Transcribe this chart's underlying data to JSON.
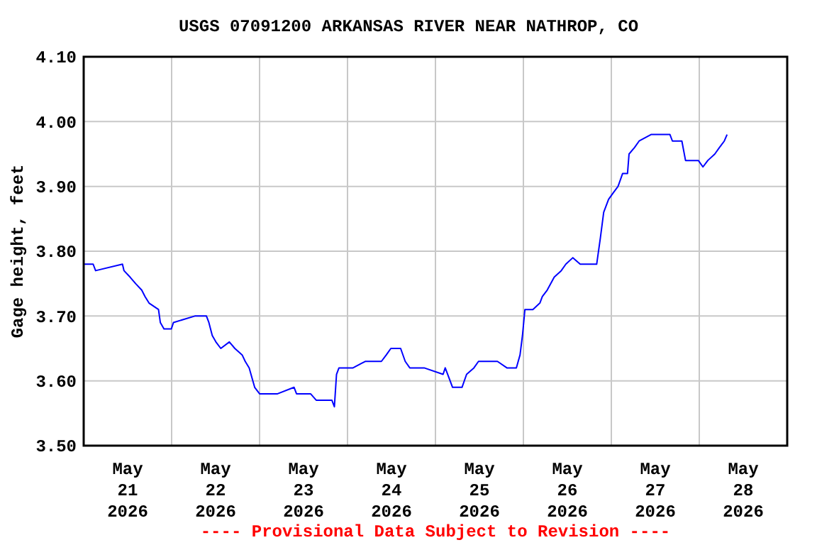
{
  "chart_data": {
    "type": "line",
    "title": "USGS 07091200 ARKANSAS RIVER NEAR NATHROP, CO",
    "ylabel": "Gage height, feet",
    "annotations": [
      "---- Provisional Data Subject to Revision ----"
    ],
    "xlim": [
      "2026-05-21T00:00",
      "2026-05-29T00:00"
    ],
    "xticks": [
      {
        "value": "2026-05-21T00:00",
        "label": null
      },
      {
        "value": "2026-05-21T12:00",
        "label": "May\n21\n2026"
      },
      {
        "value": "2026-05-22T00:00",
        "label": null
      },
      {
        "value": "2026-05-22T12:00",
        "label": "May\n22\n2026"
      },
      {
        "value": "2026-05-23T00:00",
        "label": null
      },
      {
        "value": "2026-05-23T12:00",
        "label": "May\n23\n2026"
      },
      {
        "value": "2026-05-24T00:00",
        "label": null
      },
      {
        "value": "2026-05-24T12:00",
        "label": "May\n24\n2026"
      },
      {
        "value": "2026-05-25T00:00",
        "label": null
      },
      {
        "value": "2026-05-25T12:00",
        "label": "May\n25\n2026"
      },
      {
        "value": "2026-05-26T00:00",
        "label": null
      },
      {
        "value": "2026-05-26T12:00",
        "label": "May\n26\n2026"
      },
      {
        "value": "2026-05-27T00:00",
        "label": null
      },
      {
        "value": "2026-05-27T12:00",
        "label": "May\n27\n2026"
      },
      {
        "value": "2026-05-28T00:00",
        "label": null
      },
      {
        "value": "2026-05-28T12:00",
        "label": "May\n28\n2026"
      },
      {
        "value": "2026-05-29T00:00",
        "label": null
      }
    ],
    "ylim": [
      3.5,
      4.1
    ],
    "yticks": [
      {
        "value": 3.5,
        "label": "3.50"
      },
      {
        "value": 3.6,
        "label": "3.60"
      },
      {
        "value": 3.7,
        "label": "3.70"
      },
      {
        "value": 3.8,
        "label": "3.80"
      },
      {
        "value": 3.9,
        "label": "3.90"
      },
      {
        "value": 4.0,
        "label": "4.00"
      },
      {
        "value": 4.1,
        "label": "4.10"
      }
    ],
    "grid": true,
    "marker": "none",
    "line_style": "solid",
    "x": [
      "2026-05-21T00:00",
      "2026-05-21T02:35",
      "2026-05-21T03:15",
      "2026-05-21T10:35",
      "2026-05-21T11:00",
      "2026-05-21T12:40",
      "2026-05-21T14:10",
      "2026-05-21T15:50",
      "2026-05-21T16:45",
      "2026-05-21T17:50",
      "2026-05-21T20:25",
      "2026-05-21T20:55",
      "2026-05-21T21:55",
      "2026-05-21T23:55",
      "2026-05-22T00:30",
      "2026-05-22T06:20",
      "2026-05-22T09:30",
      "2026-05-22T10:10",
      "2026-05-22T11:05",
      "2026-05-22T12:05",
      "2026-05-22T13:25",
      "2026-05-22T15:45",
      "2026-05-22T17:15",
      "2026-05-22T19:15",
      "2026-05-22T20:05",
      "2026-05-22T21:10",
      "2026-05-22T22:10",
      "2026-05-22T22:40",
      "2026-05-23T00:00",
      "2026-05-23T04:55",
      "2026-05-23T09:25",
      "2026-05-23T10:05",
      "2026-05-23T13:55",
      "2026-05-23T15:30",
      "2026-05-23T19:45",
      "2026-05-23T20:25",
      "2026-05-23T21:00",
      "2026-05-23T21:40",
      "2026-05-24T01:30",
      "2026-05-24T04:50",
      "2026-05-24T09:15",
      "2026-05-24T10:35",
      "2026-05-24T11:50",
      "2026-05-24T14:30",
      "2026-05-24T15:45",
      "2026-05-24T17:00",
      "2026-05-24T20:55",
      "2026-05-25T02:05",
      "2026-05-25T02:40",
      "2026-05-25T04:00",
      "2026-05-25T04:40",
      "2026-05-25T07:15",
      "2026-05-25T08:30",
      "2026-05-25T10:30",
      "2026-05-25T11:45",
      "2026-05-25T16:55",
      "2026-05-25T19:30",
      "2026-05-25T22:05",
      "2026-05-25T23:05",
      "2026-05-25T23:45",
      "2026-05-26T00:25",
      "2026-05-26T02:35",
      "2026-05-26T04:30",
      "2026-05-26T05:10",
      "2026-05-26T06:30",
      "2026-05-26T08:25",
      "2026-05-26T10:20",
      "2026-05-26T11:35",
      "2026-05-26T13:30",
      "2026-05-26T15:30",
      "2026-05-26T20:00",
      "2026-05-26T21:00",
      "2026-05-26T21:55",
      "2026-05-26T23:15",
      "2026-05-27T00:30",
      "2026-05-27T01:50",
      "2026-05-27T03:05",
      "2026-05-27T04:25",
      "2026-05-27T04:50",
      "2026-05-27T06:20",
      "2026-05-27T07:35",
      "2026-05-27T10:50",
      "2026-05-27T16:00",
      "2026-05-27T16:40",
      "2026-05-27T19:15",
      "2026-05-27T20:15",
      "2026-05-27T23:45",
      "2026-05-28T01:00",
      "2026-05-28T02:20",
      "2026-05-28T04:15",
      "2026-05-28T05:30",
      "2026-05-28T06:50",
      "2026-05-28T07:35"
    ],
    "series": [
      {
        "color": "#0000ff",
        "values": [
          3.78,
          3.78,
          3.77,
          3.78,
          3.77,
          3.76,
          3.75,
          3.74,
          3.73,
          3.72,
          3.71,
          3.69,
          3.68,
          3.68,
          3.69,
          3.7,
          3.7,
          3.69,
          3.67,
          3.66,
          3.65,
          3.66,
          3.65,
          3.64,
          3.63,
          3.62,
          3.6,
          3.59,
          3.58,
          3.58,
          3.59,
          3.58,
          3.58,
          3.57,
          3.57,
          3.56,
          3.61,
          3.62,
          3.62,
          3.63,
          3.63,
          3.64,
          3.65,
          3.65,
          3.63,
          3.62,
          3.62,
          3.61,
          3.62,
          3.6,
          3.59,
          3.59,
          3.61,
          3.62,
          3.63,
          3.63,
          3.62,
          3.62,
          3.64,
          3.67,
          3.71,
          3.71,
          3.72,
          3.73,
          3.74,
          3.76,
          3.77,
          3.78,
          3.79,
          3.78,
          3.78,
          3.82,
          3.86,
          3.88,
          3.89,
          3.9,
          3.92,
          3.92,
          3.95,
          3.96,
          3.97,
          3.98,
          3.98,
          3.97,
          3.97,
          3.94,
          3.94,
          3.93,
          3.94,
          3.95,
          3.96,
          3.97,
          3.98
        ]
      }
    ]
  }
}
